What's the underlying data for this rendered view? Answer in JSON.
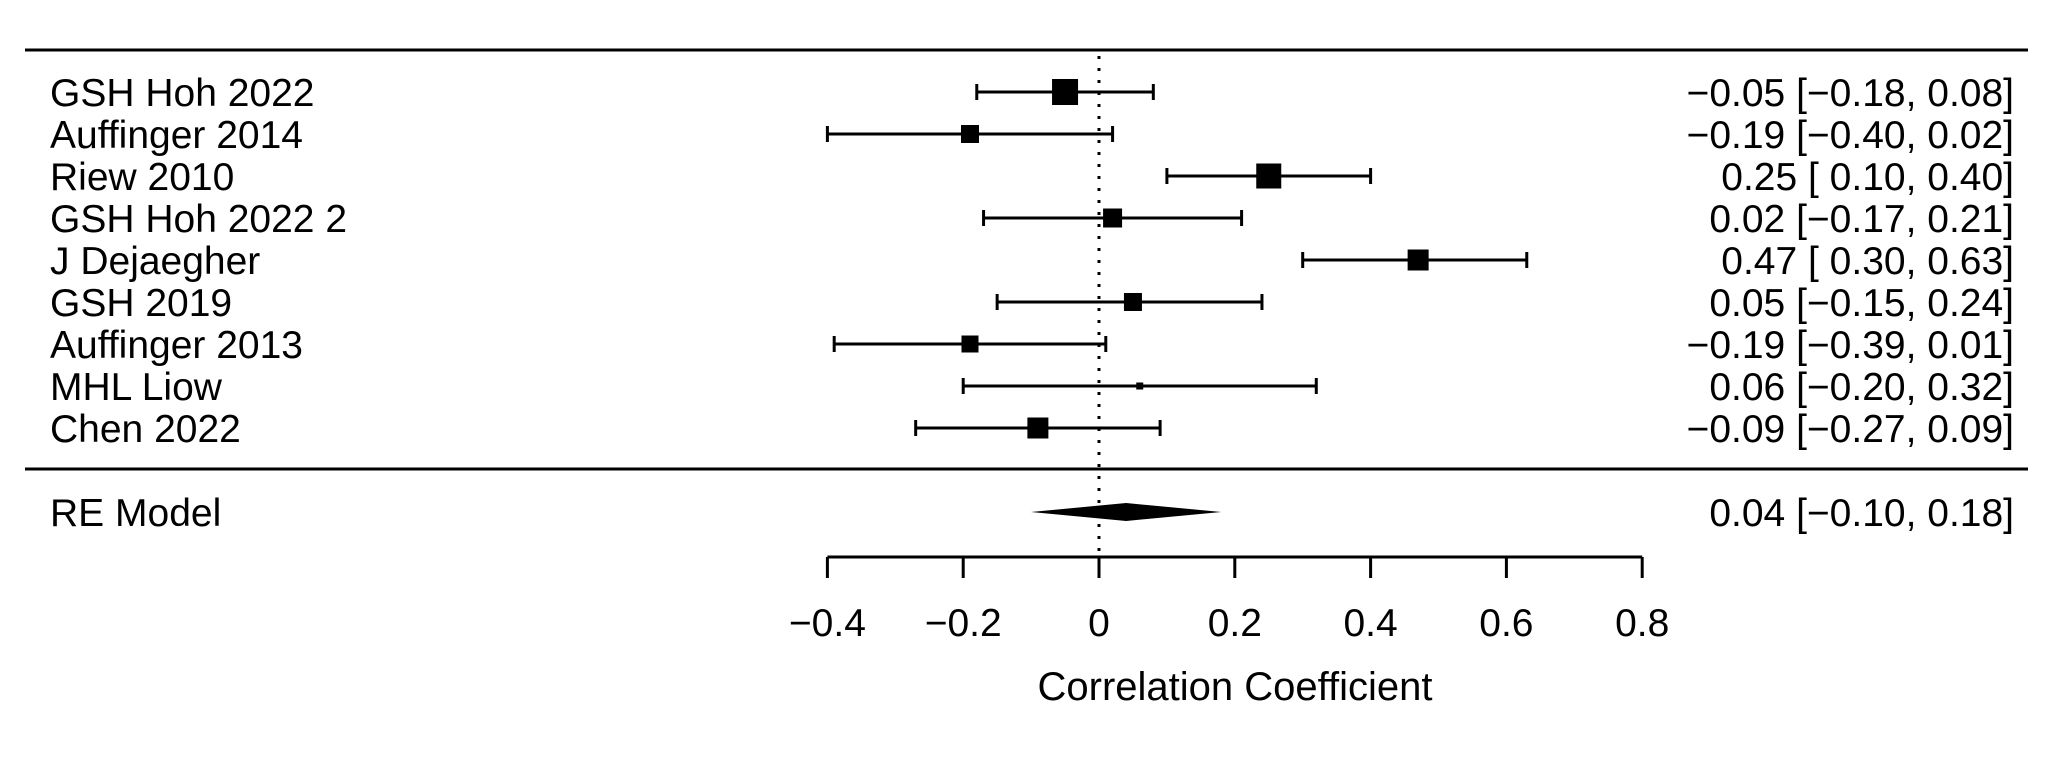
{
  "colors": {
    "foreground": "#000000",
    "background": "#ffffff"
  },
  "chart_data": {
    "type": "forest",
    "title": "",
    "xlabel": "Correlation Coefficient",
    "x_axis": {
      "min": -0.4,
      "max": 0.8,
      "ticks": [
        -0.4,
        -0.2,
        0,
        0.2,
        0.4,
        0.6,
        0.8
      ],
      "tick_labels": [
        "−0.4",
        "−0.2",
        "0",
        "0.2",
        "0.4",
        "0.6",
        "0.8"
      ]
    },
    "reference_line_x": 0,
    "grid": "off",
    "studies": [
      {
        "label": "GSH Hoh 2022",
        "estimate": -0.05,
        "ci_lower": -0.18,
        "ci_upper": 0.08,
        "annotation": "−0.05 [−0.18, 0.08]",
        "marker_size": 26
      },
      {
        "label": "Auffinger 2014",
        "estimate": -0.19,
        "ci_lower": -0.4,
        "ci_upper": 0.02,
        "annotation": "−0.19 [−0.40, 0.02]",
        "marker_size": 18
      },
      {
        "label": "Riew 2010",
        "estimate": 0.25,
        "ci_lower": 0.1,
        "ci_upper": 0.4,
        "annotation": "0.25 [ 0.10, 0.40]",
        "marker_size": 25
      },
      {
        "label": "GSH Hoh 2022 2",
        "estimate": 0.02,
        "ci_lower": -0.17,
        "ci_upper": 0.21,
        "annotation": "0.02 [−0.17, 0.21]",
        "marker_size": 19
      },
      {
        "label": "J Dejaegher",
        "estimate": 0.47,
        "ci_lower": 0.3,
        "ci_upper": 0.63,
        "annotation": "0.47 [ 0.30, 0.63]",
        "marker_size": 21
      },
      {
        "label": "GSH 2019",
        "estimate": 0.05,
        "ci_lower": -0.15,
        "ci_upper": 0.24,
        "annotation": "0.05 [−0.15, 0.24]",
        "marker_size": 18
      },
      {
        "label": "Auffinger 2013",
        "estimate": -0.19,
        "ci_lower": -0.39,
        "ci_upper": 0.01,
        "annotation": "−0.19 [−0.39, 0.01]",
        "marker_size": 17
      },
      {
        "label": "MHL Liow",
        "estimate": 0.06,
        "ci_lower": -0.2,
        "ci_upper": 0.32,
        "annotation": "0.06 [−0.20, 0.32]",
        "marker_size": 7
      },
      {
        "label": "Chen 2022",
        "estimate": -0.09,
        "ci_lower": -0.27,
        "ci_upper": 0.09,
        "annotation": "−0.09 [−0.27, 0.09]",
        "marker_size": 21
      }
    ],
    "summary": {
      "label": "RE Model",
      "estimate": 0.04,
      "ci_lower": -0.1,
      "ci_upper": 0.18,
      "annotation": "0.04 [−0.10, 0.18]"
    }
  }
}
